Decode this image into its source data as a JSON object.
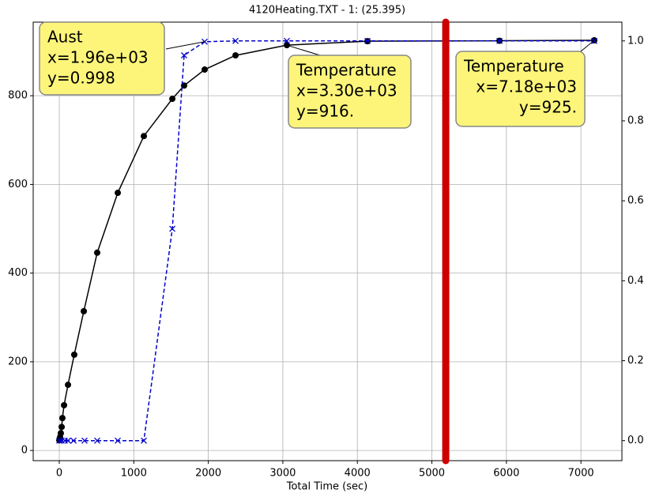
{
  "chart_data": {
    "type": "line",
    "title": "4120Heating.TXT - 1: (25.395)",
    "xlabel": "Total Time (sec)",
    "xlim": [
      -350,
      7550
    ],
    "xticks": [
      0,
      1000,
      2000,
      3000,
      4000,
      5000,
      6000,
      7000
    ],
    "ylim": [
      -23,
      966
    ],
    "yticks": [
      0,
      200,
      400,
      600,
      800
    ],
    "y2lim": [
      -0.05,
      1.047
    ],
    "y2ticks": [
      {
        "value": 0,
        "label": "0.0"
      },
      0.2,
      0.4,
      0.6,
      0.8,
      {
        "value": 1,
        "label": "1.0"
      }
    ],
    "grid": true,
    "series": [
      {
        "color": "#000000",
        "marker": "o",
        "dash": "solid",
        "x": [
          0,
          11,
          21,
          32,
          42,
          64,
          117,
          201,
          329,
          509,
          785,
          1135,
          1517,
          1675,
          1951,
          2365,
          3054,
          4136,
          5907,
          7179
        ],
        "values": [
          23,
          30,
          39,
          53,
          73,
          102,
          148,
          216,
          314,
          446,
          581,
          709,
          793,
          823,
          859,
          891,
          914,
          923,
          924,
          925
        ]
      },
      {
        "color": "#0000cc",
        "marker": "x",
        "dash": "dashed",
        "axis": "y2",
        "x": [
          0,
          32,
          74,
          117,
          191,
          339,
          509,
          785,
          1135,
          1517,
          1675,
          1951,
          2365,
          3054,
          4136,
          5907,
          7179
        ],
        "values": [
          0,
          0,
          0,
          0,
          0,
          0,
          0,
          0,
          0,
          0.53,
          0.964,
          0.998,
          1.0,
          1.0,
          1.0,
          1.0,
          1.0
        ]
      }
    ],
    "vline": {
      "x": 5186,
      "color": "#cc0000"
    },
    "annotations": [
      {
        "lines": [
          "Aust",
          "x=1.96e+03",
          "y=0.998"
        ]
      },
      {
        "lines": [
          "Temperature",
          "x=3.30e+03",
          "y=916."
        ]
      },
      {
        "lines": [
          "Temperature",
          "x=7.18e+03",
          "y=925."
        ]
      }
    ]
  }
}
